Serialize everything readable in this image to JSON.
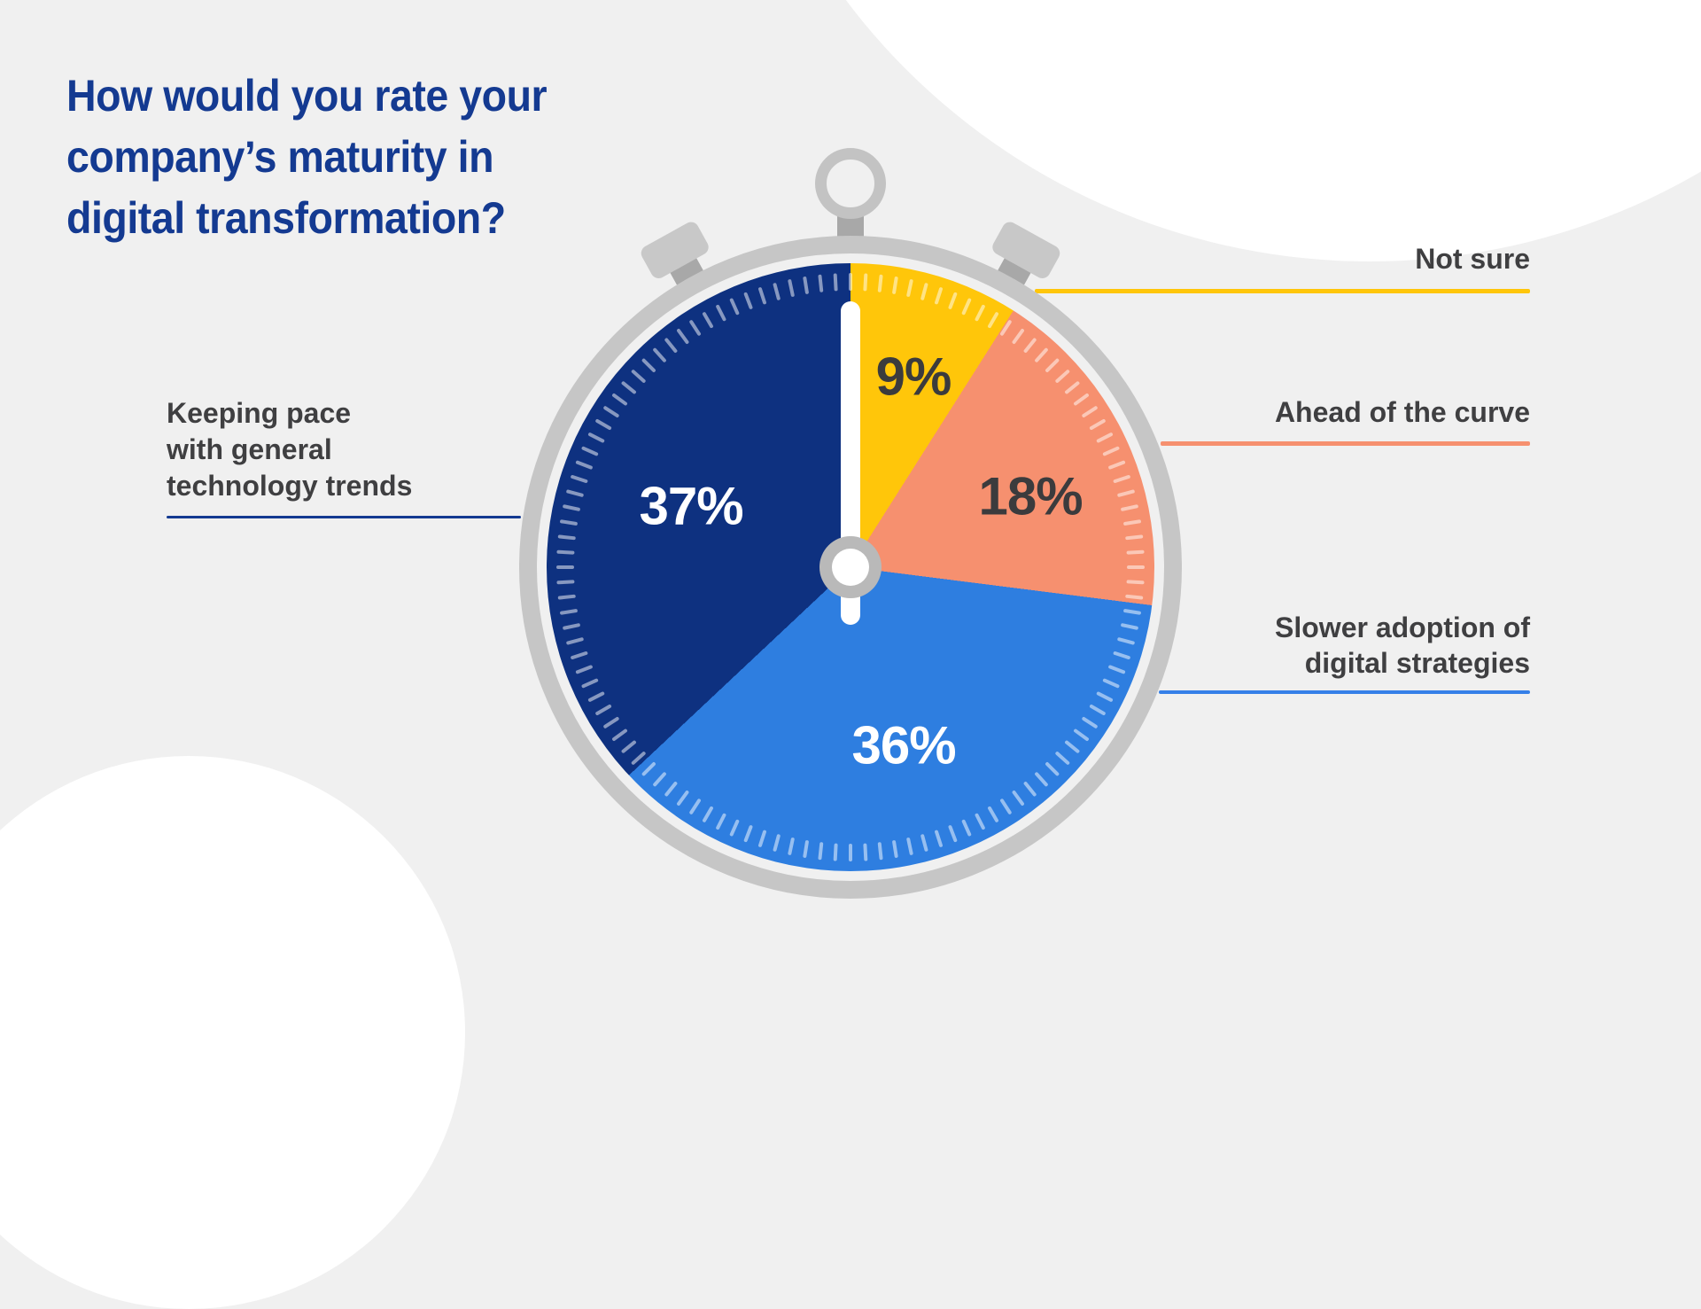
{
  "title": {
    "text": "How would you rate your\ncompany’s maturity in\ndigital transformation?"
  },
  "chart_data": {
    "type": "pie",
    "title": "How would you rate your company’s maturity in digital transformation?",
    "style": "pie chart drawn as a stopwatch dial, segments start at 12 o'clock and run clockwise",
    "units": "percent of respondents",
    "legend_position": "callout labels with colored leader lines",
    "segments": [
      {
        "label": "Not sure",
        "value": 9,
        "display": "9%",
        "color": "#FFC60A"
      },
      {
        "label": "Ahead of the curve",
        "value": 18,
        "display": "18%",
        "color": "#F6906F"
      },
      {
        "label": "Slower adoption of digital strategies",
        "value": 36,
        "display": "36%",
        "color": "#2E7EE0"
      },
      {
        "label": "Keeping pace with general technology trends",
        "value": 37,
        "display": "37%",
        "color": "#0E3180"
      }
    ]
  },
  "callouts": {
    "keeping": {
      "text": "Keeping pace\nwith general\ntechnology trends",
      "line_color": "#143A91"
    },
    "notsure": {
      "text": "Not sure",
      "line_color": "#FFC60A"
    },
    "ahead": {
      "text": "Ahead of the curve",
      "line_color": "#F6906F"
    },
    "slower": {
      "text": "Slower adoption of\ndigital strategies",
      "line_color": "#3580E8"
    }
  },
  "colors": {
    "background": "#F0F0F0",
    "deco_circle": "#FFFFFF",
    "title_text": "#143A91",
    "label_text": "#3F3F41",
    "watch_bezel": "#C6C6C6",
    "watch_hardware": "#A8A8A8",
    "needle": "#FFFFFF"
  }
}
